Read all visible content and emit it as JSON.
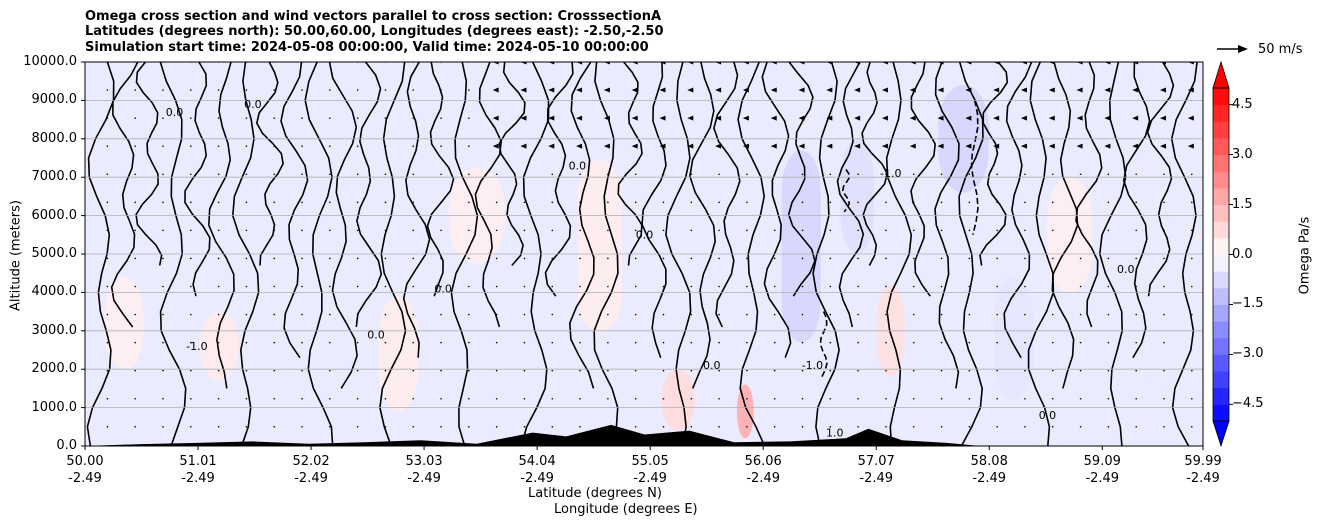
{
  "chart_data": {
    "type": "contour",
    "title_lines": [
      "Omega cross section and wind vectors parallel to cross section: CrosssectionA",
      "Latitudes (degrees north): 50.00,60.00, Longitudes (degrees east): -2.50,-2.50",
      "Simulation start time: 2024-05-08 00:00:00, Valid time: 2024-05-10 00:00:00"
    ],
    "xlabel": "Latitude (degrees N)",
    "xlabel2": "Longitude (degrees E)",
    "ylabel": "Altitude (meters)",
    "colorbar_label": "Omega Pa/s",
    "quiver_key_label": "50 m/s",
    "xlim": [
      50.0,
      59.99
    ],
    "ylim": [
      0,
      10000
    ],
    "x_ticks": [
      {
        "lat": "50.00",
        "lon": "-2.49"
      },
      {
        "lat": "51.01",
        "lon": "-2.49"
      },
      {
        "lat": "52.02",
        "lon": "-2.49"
      },
      {
        "lat": "53.03",
        "lon": "-2.49"
      },
      {
        "lat": "54.04",
        "lon": "-2.49"
      },
      {
        "lat": "55.05",
        "lon": "-2.49"
      },
      {
        "lat": "56.06",
        "lon": "-2.49"
      },
      {
        "lat": "57.07",
        "lon": "-2.49"
      },
      {
        "lat": "58.08",
        "lon": "-2.49"
      },
      {
        "lat": "59.09",
        "lon": "-2.49"
      },
      {
        "lat": "59.99",
        "lon": "-2.49"
      }
    ],
    "y_ticks": [
      "0.0",
      "1000.0",
      "2000.0",
      "3000.0",
      "4000.0",
      "5000.0",
      "6000.0",
      "7000.0",
      "8000.0",
      "9000.0",
      "10000.0"
    ],
    "colorbar_ticks": [
      "4.5",
      "3.0",
      "1.5",
      "0.0",
      "−1.5",
      "−3.0",
      "−4.5"
    ],
    "colorbar_levels": [
      -5.0,
      -4.5,
      -4.0,
      -3.5,
      -3.0,
      -2.5,
      -2.0,
      -1.5,
      -1.0,
      -0.5,
      0.0,
      0.5,
      1.0,
      1.5,
      2.0,
      2.5,
      3.0,
      3.5,
      4.0,
      4.5,
      5.0
    ],
    "grid": true,
    "contour_line_labels": [
      "0.0",
      "-1.0",
      "1.0"
    ],
    "colormap": "bwr",
    "colors": {
      "negative": "#0000ff",
      "neutral": "#ffffff",
      "positive": "#ff0000",
      "terrain": "#000000"
    },
    "omega_regions": [
      {
        "x": 50.35,
        "y": 3200,
        "w": 0.35,
        "h": 2400,
        "v": 0.3
      },
      {
        "x": 51.2,
        "y": 2600,
        "w": 0.35,
        "h": 1800,
        "v": 0.4
      },
      {
        "x": 52.8,
        "y": 2400,
        "w": 0.35,
        "h": 3000,
        "v": 0.35
      },
      {
        "x": 53.5,
        "y": 6000,
        "w": 0.5,
        "h": 2500,
        "v": 0.3
      },
      {
        "x": 54.6,
        "y": 5200,
        "w": 0.4,
        "h": 4500,
        "v": 0.35
      },
      {
        "x": 55.3,
        "y": 1200,
        "w": 0.3,
        "h": 1600,
        "v": 0.7
      },
      {
        "x": 55.9,
        "y": 900,
        "w": 0.15,
        "h": 1400,
        "v": 1.6
      },
      {
        "x": 56.4,
        "y": 5200,
        "w": 0.35,
        "h": 5000,
        "v": -0.8
      },
      {
        "x": 56.9,
        "y": 6500,
        "w": 0.3,
        "h": 3000,
        "v": -0.6
      },
      {
        "x": 57.2,
        "y": 3000,
        "w": 0.25,
        "h": 2400,
        "v": 0.6
      },
      {
        "x": 57.85,
        "y": 8000,
        "w": 0.45,
        "h": 2800,
        "v": -0.8
      },
      {
        "x": 58.3,
        "y": 2800,
        "w": 0.35,
        "h": 3200,
        "v": -0.5
      },
      {
        "x": 58.8,
        "y": 5500,
        "w": 0.4,
        "h": 3000,
        "v": 0.3
      },
      {
        "x": 59.6,
        "y": 4000,
        "w": 0.3,
        "h": 5000,
        "v": -0.4
      }
    ],
    "terrain": [
      {
        "x": 50.5,
        "y": 50
      },
      {
        "x": 51.0,
        "y": 80
      },
      {
        "x": 51.5,
        "y": 120
      },
      {
        "x": 52.0,
        "y": 60
      },
      {
        "x": 52.5,
        "y": 100
      },
      {
        "x": 53.0,
        "y": 150
      },
      {
        "x": 53.5,
        "y": 60
      },
      {
        "x": 54.0,
        "y": 350
      },
      {
        "x": 54.3,
        "y": 250
      },
      {
        "x": 54.7,
        "y": 550
      },
      {
        "x": 55.0,
        "y": 300
      },
      {
        "x": 55.4,
        "y": 400
      },
      {
        "x": 55.8,
        "y": 100
      },
      {
        "x": 56.3,
        "y": 120
      },
      {
        "x": 56.8,
        "y": 200
      },
      {
        "x": 57.0,
        "y": 450
      },
      {
        "x": 57.3,
        "y": 150
      },
      {
        "x": 57.7,
        "y": 80
      }
    ]
  }
}
